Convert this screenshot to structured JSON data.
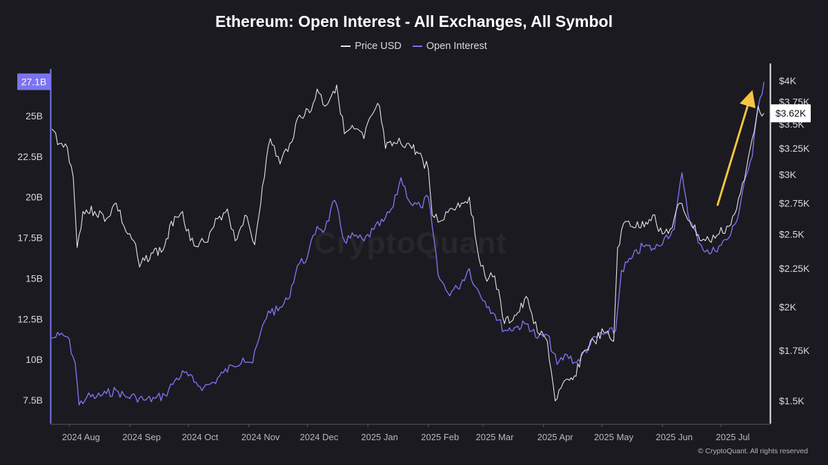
{
  "title": "Ethereum: Open Interest - All Exchanges, All Symbol",
  "watermark": "CryptoQuant",
  "copyright": "© CryptoQuant. All rights reserved",
  "colors": {
    "background": "#1b1a20",
    "price": "#e8e8ec",
    "open_interest": "#7b74f0",
    "arrow": "#f5c542"
  },
  "chart_data": {
    "type": "line",
    "legend": [
      "Price USD",
      "Open Interest"
    ],
    "legend_position": "top-center",
    "grid": false,
    "x_labels": [
      "2024 Aug",
      "2024 Sep",
      "2024 Oct",
      "2024 Nov",
      "2024 Dec",
      "2025 Jan",
      "2025 Feb",
      "2025 Mar",
      "2025 Apr",
      "2025 May",
      "2025 Jun",
      "2025 Jul"
    ],
    "x_range": [
      "2024-07-23",
      "2025-07-24"
    ],
    "left_axis": {
      "ticks": [
        7.5,
        10,
        12.5,
        15,
        17.5,
        20,
        22.5,
        25
      ],
      "tick_labels": [
        "7.5B",
        "10B",
        "12.5B",
        "15B",
        "17.5B",
        "20B",
        "22.5B",
        "25B"
      ],
      "range": [
        7.5,
        27.1
      ],
      "current_badge": "27.1B"
    },
    "right_axis": {
      "scale": "log",
      "ticks": [
        1500,
        1750,
        2000,
        2250,
        2500,
        2750,
        3000,
        3250,
        3500,
        3750,
        4000
      ],
      "tick_labels": [
        "$1.5K",
        "$1.75K",
        "$2K",
        "$2.25K",
        "$2.5K",
        "$2.75K",
        "$3K",
        "$3.25K",
        "$3.5K",
        "$3.75K",
        "$4K"
      ],
      "range": [
        1500,
        4000
      ],
      "current_badge": "$3.62K"
    },
    "series": [
      {
        "name": "Price USD",
        "axis": "right",
        "points": [
          [
            "2024-07-23",
            3450
          ],
          [
            "2024-07-27",
            3300
          ],
          [
            "2024-07-31",
            3260
          ],
          [
            "2024-08-03",
            2980
          ],
          [
            "2024-08-05",
            2400
          ],
          [
            "2024-08-08",
            2680
          ],
          [
            "2024-08-14",
            2680
          ],
          [
            "2024-08-20",
            2620
          ],
          [
            "2024-08-25",
            2750
          ],
          [
            "2024-08-30",
            2520
          ],
          [
            "2024-09-03",
            2450
          ],
          [
            "2024-09-06",
            2260
          ],
          [
            "2024-09-12",
            2360
          ],
          [
            "2024-09-18",
            2380
          ],
          [
            "2024-09-24",
            2640
          ],
          [
            "2024-09-28",
            2680
          ],
          [
            "2024-10-02",
            2450
          ],
          [
            "2024-10-07",
            2440
          ],
          [
            "2024-10-11",
            2440
          ],
          [
            "2024-10-16",
            2620
          ],
          [
            "2024-10-21",
            2700
          ],
          [
            "2024-10-25",
            2450
          ],
          [
            "2024-10-30",
            2650
          ],
          [
            "2024-11-04",
            2420
          ],
          [
            "2024-11-08",
            2900
          ],
          [
            "2024-11-12",
            3350
          ],
          [
            "2024-11-17",
            3100
          ],
          [
            "2024-11-22",
            3300
          ],
          [
            "2024-11-27",
            3600
          ],
          [
            "2024-12-03",
            3650
          ],
          [
            "2024-12-06",
            3900
          ],
          [
            "2024-12-10",
            3700
          ],
          [
            "2024-12-16",
            3950
          ],
          [
            "2024-12-20",
            3400
          ],
          [
            "2024-12-25",
            3450
          ],
          [
            "2024-12-30",
            3350
          ],
          [
            "2025-01-03",
            3600
          ],
          [
            "2025-01-07",
            3700
          ],
          [
            "2025-01-10",
            3250
          ],
          [
            "2025-01-16",
            3300
          ],
          [
            "2025-01-21",
            3300
          ],
          [
            "2025-01-27",
            3200
          ],
          [
            "2025-02-01",
            3050
          ],
          [
            "2025-02-03",
            2650
          ],
          [
            "2025-02-07",
            2600
          ],
          [
            "2025-02-12",
            2700
          ],
          [
            "2025-02-18",
            2750
          ],
          [
            "2025-02-22",
            2800
          ],
          [
            "2025-02-26",
            2400
          ],
          [
            "2025-03-02",
            2200
          ],
          [
            "2025-03-07",
            2200
          ],
          [
            "2025-03-12",
            1900
          ],
          [
            "2025-03-18",
            1950
          ],
          [
            "2025-03-24",
            2050
          ],
          [
            "2025-03-29",
            1850
          ],
          [
            "2025-04-03",
            1800
          ],
          [
            "2025-04-07",
            1500
          ],
          [
            "2025-04-10",
            1560
          ],
          [
            "2025-04-16",
            1600
          ],
          [
            "2025-04-22",
            1750
          ],
          [
            "2025-04-27",
            1800
          ],
          [
            "2025-05-02",
            1850
          ],
          [
            "2025-05-07",
            1800
          ],
          [
            "2025-05-09",
            2400
          ],
          [
            "2025-05-13",
            2600
          ],
          [
            "2025-05-20",
            2550
          ],
          [
            "2025-05-27",
            2650
          ],
          [
            "2025-06-01",
            2500
          ],
          [
            "2025-06-06",
            2550
          ],
          [
            "2025-06-10",
            2750
          ],
          [
            "2025-06-15",
            2600
          ],
          [
            "2025-06-21",
            2450
          ],
          [
            "2025-06-25",
            2450
          ],
          [
            "2025-06-30",
            2500
          ],
          [
            "2025-07-05",
            2560
          ],
          [
            "2025-07-09",
            2700
          ],
          [
            "2025-07-13",
            2950
          ],
          [
            "2025-07-17",
            3350
          ],
          [
            "2025-07-20",
            3700
          ],
          [
            "2025-07-23",
            3620
          ]
        ]
      },
      {
        "name": "Open Interest",
        "axis": "left",
        "points": [
          [
            "2024-07-23",
            11.3
          ],
          [
            "2024-07-27",
            11.5
          ],
          [
            "2024-07-31",
            11.4
          ],
          [
            "2024-08-04",
            9.8
          ],
          [
            "2024-08-06",
            7.2
          ],
          [
            "2024-08-10",
            7.7
          ],
          [
            "2024-08-15",
            7.7
          ],
          [
            "2024-08-20",
            7.9
          ],
          [
            "2024-08-25",
            8.1
          ],
          [
            "2024-08-30",
            7.7
          ],
          [
            "2024-09-04",
            7.7
          ],
          [
            "2024-09-09",
            7.5
          ],
          [
            "2024-09-14",
            7.6
          ],
          [
            "2024-09-19",
            7.8
          ],
          [
            "2024-09-24",
            8.7
          ],
          [
            "2024-09-29",
            9.2
          ],
          [
            "2024-10-04",
            8.6
          ],
          [
            "2024-10-09",
            8.3
          ],
          [
            "2024-10-14",
            8.6
          ],
          [
            "2024-10-19",
            9.2
          ],
          [
            "2024-10-24",
            9.6
          ],
          [
            "2024-10-29",
            10.1
          ],
          [
            "2024-11-03",
            9.8
          ],
          [
            "2024-11-06",
            11.2
          ],
          [
            "2024-11-11",
            13.0
          ],
          [
            "2024-11-16",
            13.0
          ],
          [
            "2024-11-21",
            13.7
          ],
          [
            "2024-11-26",
            15.8
          ],
          [
            "2024-12-01",
            16.3
          ],
          [
            "2024-12-06",
            18.2
          ],
          [
            "2024-12-10",
            18.0
          ],
          [
            "2024-12-15",
            19.8
          ],
          [
            "2024-12-20",
            17.3
          ],
          [
            "2024-12-25",
            17.6
          ],
          [
            "2024-12-30",
            17.3
          ],
          [
            "2025-01-04",
            18.0
          ],
          [
            "2025-01-09",
            18.5
          ],
          [
            "2025-01-14",
            19.4
          ],
          [
            "2025-01-18",
            21.2
          ],
          [
            "2025-01-23",
            19.6
          ],
          [
            "2025-01-28",
            19.4
          ],
          [
            "2025-02-01",
            20.0
          ],
          [
            "2025-02-03",
            18.2
          ],
          [
            "2025-02-06",
            15.2
          ],
          [
            "2025-02-11",
            14.1
          ],
          [
            "2025-02-16",
            14.4
          ],
          [
            "2025-02-22",
            15.6
          ],
          [
            "2025-02-25",
            14.5
          ],
          [
            "2025-03-02",
            13.6
          ],
          [
            "2025-03-07",
            12.8
          ],
          [
            "2025-03-12",
            11.8
          ],
          [
            "2025-03-18",
            12.0
          ],
          [
            "2025-03-24",
            12.2
          ],
          [
            "2025-03-29",
            11.3
          ],
          [
            "2025-04-03",
            11.5
          ],
          [
            "2025-04-08",
            9.7
          ],
          [
            "2025-04-13",
            10.3
          ],
          [
            "2025-04-18",
            9.8
          ],
          [
            "2025-04-24",
            10.8
          ],
          [
            "2025-04-29",
            11.5
          ],
          [
            "2025-05-04",
            11.6
          ],
          [
            "2025-05-08",
            11.8
          ],
          [
            "2025-05-11",
            15.5
          ],
          [
            "2025-05-16",
            16.2
          ],
          [
            "2025-05-22",
            17.0
          ],
          [
            "2025-05-28",
            16.8
          ],
          [
            "2025-06-02",
            17.5
          ],
          [
            "2025-06-07",
            18.0
          ],
          [
            "2025-06-11",
            21.5
          ],
          [
            "2025-06-15",
            18.5
          ],
          [
            "2025-06-21",
            17.0
          ],
          [
            "2025-06-25",
            16.5
          ],
          [
            "2025-06-30",
            17.0
          ],
          [
            "2025-07-05",
            17.5
          ],
          [
            "2025-07-09",
            18.5
          ],
          [
            "2025-07-13",
            21.0
          ],
          [
            "2025-07-17",
            22.5
          ],
          [
            "2025-07-20",
            25.5
          ],
          [
            "2025-07-23",
            27.1
          ]
        ]
      }
    ]
  }
}
